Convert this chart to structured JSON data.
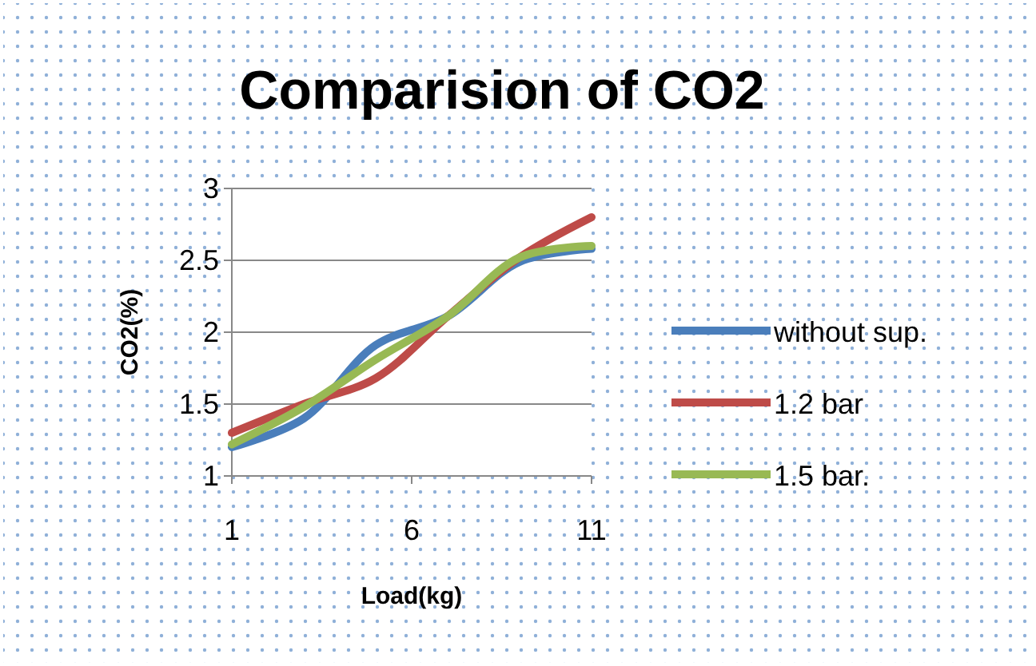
{
  "chart_data": {
    "type": "line",
    "title": "Comparision of CO2",
    "xlabel": "Load(kg)",
    "ylabel": "CO2(%)",
    "x": [
      1,
      3,
      5,
      7,
      9,
      11
    ],
    "series": [
      {
        "name": "without sup.",
        "color": "#4a7ebb",
        "values": [
          1.2,
          1.4,
          1.91,
          2.11,
          2.49,
          2.58
        ]
      },
      {
        "name": "1.2 bar",
        "color": "#be4b48",
        "values": [
          1.3,
          1.5,
          1.68,
          2.11,
          2.52,
          2.8
        ]
      },
      {
        "name": "1.5 bar.",
        "color": "#98b954",
        "values": [
          1.22,
          1.48,
          1.81,
          2.11,
          2.52,
          2.6
        ]
      }
    ],
    "xlim": [
      1,
      11
    ],
    "xticks": [
      1,
      6,
      11
    ],
    "ylim": [
      1,
      3
    ],
    "yticks": [
      1,
      1.5,
      2,
      2.5,
      3
    ],
    "grid": "y",
    "legend": "right",
    "marker": "none"
  }
}
